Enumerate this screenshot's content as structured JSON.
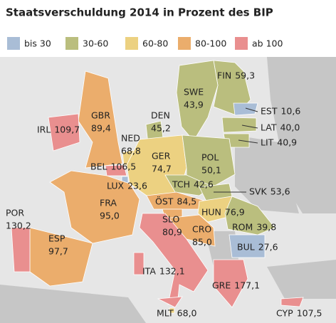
{
  "title": "Staatsverschuldung 2014 in Prozent des BIP",
  "legend": [
    {
      "label": "bis 30",
      "color": "#a9bdd6"
    },
    {
      "label": "30-60",
      "color": "#babe7e"
    },
    {
      "label": "60-80",
      "color": "#ecd181"
    },
    {
      "label": "80-100",
      "color": "#ebad6c"
    },
    {
      "label": "ab 100",
      "color": "#e98f8f"
    }
  ],
  "countries": [
    {
      "name": "FIN",
      "value": "59,3",
      "color": "#babe7e"
    },
    {
      "name": "SWE",
      "value": "43,9",
      "color": "#babe7e"
    },
    {
      "name": "EST",
      "value": "10,6",
      "color": "#a9bdd6"
    },
    {
      "name": "LAT",
      "value": "40,0",
      "color": "#babe7e"
    },
    {
      "name": "LIT",
      "value": "40,9",
      "color": "#babe7e"
    },
    {
      "name": "DEN",
      "value": "45,2",
      "color": "#babe7e"
    },
    {
      "name": "GBR",
      "value": "89,4",
      "color": "#ebad6c"
    },
    {
      "name": "IRL",
      "value": "109,7",
      "color": "#e98f8f"
    },
    {
      "name": "NED",
      "value": "68,8",
      "color": "#ecd181"
    },
    {
      "name": "BEL",
      "value": "106,5",
      "color": "#e98f8f"
    },
    {
      "name": "LUX",
      "value": "23,6",
      "color": "#a9bdd6"
    },
    {
      "name": "GER",
      "value": "74,7",
      "color": "#ecd181"
    },
    {
      "name": "POL",
      "value": "50,1",
      "color": "#babe7e"
    },
    {
      "name": "TCH",
      "value": "42,6",
      "color": "#babe7e"
    },
    {
      "name": "SVK",
      "value": "53,6",
      "color": "#babe7e"
    },
    {
      "name": "ÖST",
      "value": "84,5",
      "color": "#ebad6c"
    },
    {
      "name": "HUN",
      "value": "76,9",
      "color": "#ecd181"
    },
    {
      "name": "SLO",
      "value": "80,9",
      "color": "#ebad6c"
    },
    {
      "name": "CRO",
      "value": "85,0",
      "color": "#ebad6c"
    },
    {
      "name": "ROM",
      "value": "39,8",
      "color": "#babe7e"
    },
    {
      "name": "BUL",
      "value": "27,6",
      "color": "#a9bdd6"
    },
    {
      "name": "FRA",
      "value": "95,0",
      "color": "#ebad6c"
    },
    {
      "name": "ESP",
      "value": "97,7",
      "color": "#ebad6c"
    },
    {
      "name": "POR",
      "value": "130,2",
      "color": "#e98f8f"
    },
    {
      "name": "ITA",
      "value": "132,1",
      "color": "#e98f8f"
    },
    {
      "name": "GRE",
      "value": "177,1",
      "color": "#e98f8f"
    },
    {
      "name": "MLT",
      "value": "68,0",
      "color": "#ecd181"
    },
    {
      "name": "CYP",
      "value": "107,5",
      "color": "#e98f8f"
    }
  ]
}
